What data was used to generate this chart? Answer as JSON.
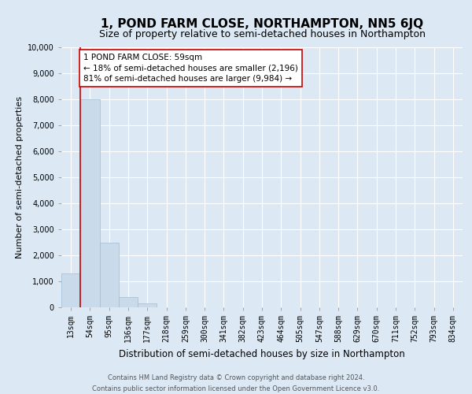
{
  "title": "1, POND FARM CLOSE, NORTHAMPTON, NN5 6JQ",
  "subtitle": "Size of property relative to semi-detached houses in Northampton",
  "xlabel": "Distribution of semi-detached houses by size in Northampton",
  "ylabel": "Number of semi-detached properties",
  "bar_labels": [
    "13sqm",
    "54sqm",
    "95sqm",
    "136sqm",
    "177sqm",
    "218sqm",
    "259sqm",
    "300sqm",
    "341sqm",
    "382sqm",
    "423sqm",
    "464sqm",
    "505sqm",
    "547sqm",
    "588sqm",
    "629sqm",
    "670sqm",
    "711sqm",
    "752sqm",
    "793sqm",
    "834sqm"
  ],
  "bar_values": [
    1300,
    8000,
    2500,
    400,
    150,
    0,
    0,
    0,
    0,
    0,
    0,
    0,
    0,
    0,
    0,
    0,
    0,
    0,
    0,
    0,
    0
  ],
  "bar_color": "#c9daea",
  "bar_edge_color": "#a0bcd4",
  "ylim": [
    0,
    10000
  ],
  "yticks": [
    0,
    1000,
    2000,
    3000,
    4000,
    5000,
    6000,
    7000,
    8000,
    9000,
    10000
  ],
  "property_line_x": 0.5,
  "property_line_color": "#cc0000",
  "annotation_box_text": "1 POND FARM CLOSE: 59sqm\n← 18% of semi-detached houses are smaller (2,196)\n81% of semi-detached houses are larger (9,984) →",
  "annotation_box_edge_color": "#cc0000",
  "annotation_box_bg_color": "#ffffff",
  "footer_line1": "Contains HM Land Registry data © Crown copyright and database right 2024.",
  "footer_line2": "Contains public sector information licensed under the Open Government Licence v3.0.",
  "background_color": "#dce9f5",
  "grid_color": "#ffffff",
  "title_fontsize": 11,
  "subtitle_fontsize": 9,
  "xlabel_fontsize": 8.5,
  "ylabel_fontsize": 8,
  "tick_fontsize": 7,
  "annotation_fontsize": 7.5,
  "footer_fontsize": 6
}
